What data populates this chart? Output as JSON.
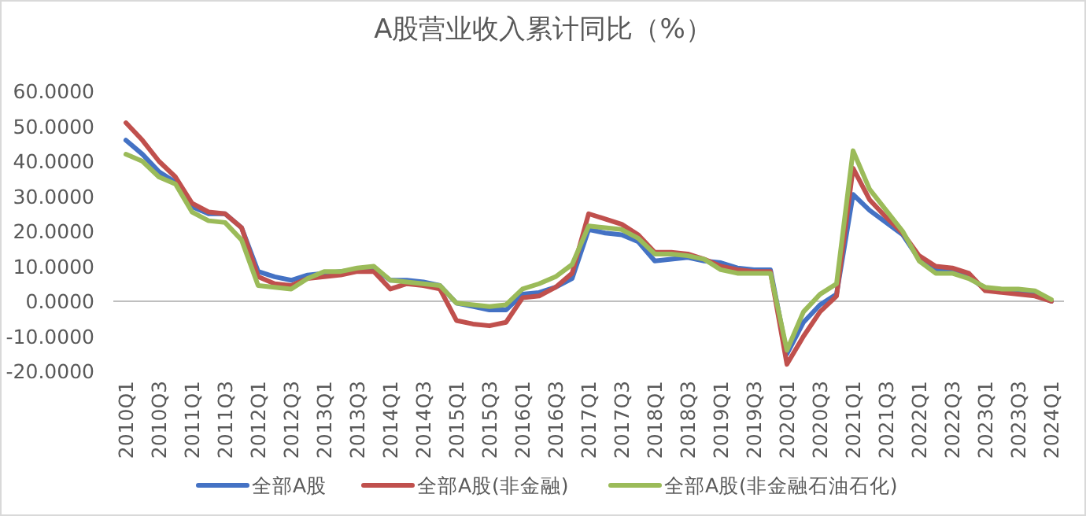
{
  "chart_data": {
    "type": "line",
    "title": "A股营业收入累计同比（%）",
    "categories": [
      "2010Q1",
      null,
      "2010Q3",
      null,
      "2011Q1",
      null,
      "2011Q3",
      null,
      "2012Q1",
      null,
      "2012Q3",
      null,
      "2013Q1",
      null,
      "2013Q3",
      null,
      "2014Q1",
      null,
      "2014Q3",
      null,
      "2015Q1",
      null,
      "2015Q3",
      null,
      "2016Q1",
      null,
      "2016Q3",
      null,
      "2017Q1",
      null,
      "2017Q3",
      null,
      "2018Q1",
      null,
      "2018Q3",
      null,
      "2019Q1",
      null,
      "2019Q3",
      null,
      "2020Q1",
      null,
      "2020Q3",
      null,
      "2021Q1",
      null,
      "2021Q3",
      null,
      "2022Q1",
      null,
      "2022Q3",
      null,
      "2023Q1",
      null,
      "2023Q3",
      null,
      "2024Q1"
    ],
    "series": [
      {
        "name": "全部A股",
        "color": "#4472c4",
        "values": [
          46,
          42,
          37,
          34,
          27,
          25,
          25,
          21,
          8.5,
          7,
          6,
          7.5,
          8,
          8.5,
          9,
          9.5,
          6,
          6,
          5.5,
          4.5,
          -0.5,
          -1.5,
          -2.5,
          -2.5,
          2,
          2.5,
          4,
          6.5,
          20.5,
          19.5,
          19,
          17,
          11.5,
          12,
          12.5,
          11.5,
          11,
          9.5,
          9,
          9,
          -15,
          -6,
          -1,
          2,
          30.5,
          26,
          22.5,
          19,
          12,
          9,
          8.5,
          7,
          3.5,
          3,
          2.5,
          2,
          0
        ]
      },
      {
        "name": "全部A股(非金融)",
        "color": "#c0504d",
        "values": [
          51,
          46,
          40,
          35.5,
          28,
          25.5,
          25,
          21,
          7,
          5,
          4.5,
          6.5,
          7,
          7.5,
          8.5,
          8.5,
          3.5,
          5,
          4.5,
          3.5,
          -5.5,
          -6.5,
          -7,
          -6,
          1,
          1.5,
          4,
          8,
          25,
          23.5,
          22,
          19,
          14,
          14,
          13.5,
          12,
          10,
          9,
          8.5,
          8.5,
          -18,
          -10,
          -3,
          1.5,
          38,
          29,
          24,
          19.5,
          13,
          10,
          9.5,
          8,
          3,
          2.5,
          2,
          1.5,
          0
        ]
      },
      {
        "name": "全部A股(非金融石油石化)",
        "color": "#9bbb59",
        "values": [
          42,
          40,
          35.5,
          33.5,
          25.5,
          23,
          22.5,
          17.5,
          4.5,
          4,
          3.5,
          6.5,
          8.5,
          8.5,
          9.5,
          10,
          6,
          5.5,
          5,
          4.5,
          -0.5,
          -1,
          -1.5,
          -1,
          3.5,
          5,
          7,
          10.5,
          21.5,
          21,
          20.5,
          18,
          13.5,
          13.5,
          13,
          12,
          9,
          8,
          8,
          8,
          -14,
          -3,
          2,
          5,
          43,
          32,
          26,
          20,
          11.5,
          8,
          8,
          6.5,
          4,
          3.5,
          3.5,
          3,
          0.5
        ]
      }
    ],
    "ylim": [
      -20,
      60
    ],
    "yticks": [
      {
        "value": -20,
        "label": "-20.0000"
      },
      {
        "value": -10,
        "label": "-10.0000"
      },
      {
        "value": 0,
        "label": "0.0000"
      },
      {
        "value": 10,
        "label": "10.0000"
      },
      {
        "value": 20,
        "label": "20.0000"
      },
      {
        "value": 30,
        "label": "30.0000"
      },
      {
        "value": 40,
        "label": "40.0000"
      },
      {
        "value": 50,
        "label": "50.0000"
      },
      {
        "value": 60,
        "label": "60.0000"
      }
    ],
    "legend": "bottom",
    "marker": "none",
    "line_style": "solid"
  }
}
